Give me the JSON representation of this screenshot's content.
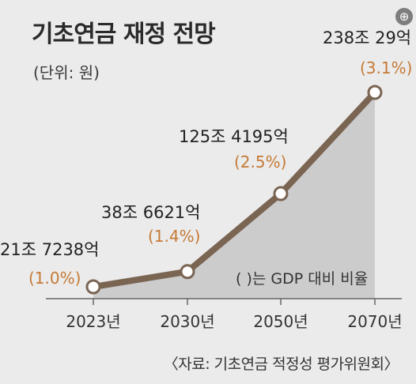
{
  "header": {
    "title": "기초연금 재정 전망",
    "unit": "(단위: 원)"
  },
  "note": "(  )는 GDP 대비 비율",
  "source": "〈자료: 기초연금 적정성 평가위원회〉",
  "zoom_icon": "zoom-in-icon",
  "colors": {
    "line": "#7a6452",
    "area": "#c9c9c9",
    "percent": "#c57a36",
    "background": "#ebebeb"
  },
  "chart_data": {
    "type": "area",
    "title": "기초연금 재정 전망",
    "ylabel": "(단위: 원)",
    "categories": [
      "2023년",
      "2030년",
      "2050년",
      "2070년"
    ],
    "values": [
      217238,
      386621,
      1254195,
      2380029
    ],
    "value_labels": [
      "21조 7238억",
      "38조 6621억",
      "125조 4195억",
      "238조 29억"
    ],
    "percent_labels": [
      "(1.0%)",
      "(1.4%)",
      "(2.5%)",
      "(3.1%)"
    ],
    "ylim": [
      0,
      2600000
    ],
    "grid": false
  }
}
